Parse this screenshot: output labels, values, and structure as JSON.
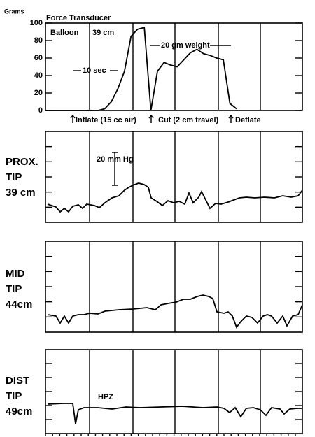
{
  "chart_data": {
    "type": "line",
    "y_unit_label": "Grams",
    "title": "Force Transducer",
    "annotations": [
      "Balloon",
      "39 cm",
      "10 sec",
      "20 gm weight",
      "Inflate (15 cc air)",
      "Cut (2 cm travel)",
      "Deflate"
    ],
    "color": "#000000",
    "categories": [
      null,
      null,
      null,
      null,
      null,
      null,
      null,
      null,
      null,
      null,
      null,
      null,
      null,
      null,
      null,
      null,
      null,
      null,
      null,
      null,
      null,
      null,
      null,
      null,
      null,
      null,
      null,
      null,
      null,
      null,
      null,
      null,
      null,
      null,
      null,
      null,
      null,
      null,
      null,
      null
    ],
    "values": [
      0,
      0,
      0,
      0,
      0,
      0,
      0,
      0,
      0,
      2,
      10,
      25,
      45,
      85,
      93,
      95,
      0,
      45,
      55,
      52,
      50,
      58,
      66,
      70,
      65,
      63,
      60,
      58,
      8,
      2,
      null,
      null,
      null,
      null,
      null,
      null,
      null,
      null,
      null,
      null
    ],
    "ylim": [
      0,
      100
    ],
    "yticks": [
      0,
      20,
      40,
      60,
      80,
      100
    ]
  },
  "panels": [
    {
      "label": [
        "PROX.",
        "TIP",
        "39 cm"
      ],
      "scale_label": "20 mm Hg"
    },
    {
      "label": [
        "MID",
        "TIP",
        "44cm"
      ]
    },
    {
      "label": [
        "DIST",
        "TIP",
        "49cm"
      ],
      "note": "HPZ"
    }
  ]
}
